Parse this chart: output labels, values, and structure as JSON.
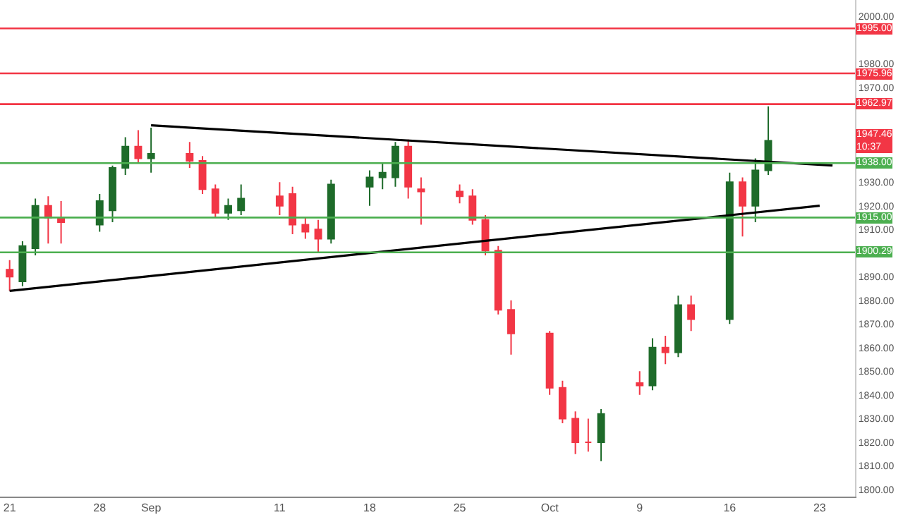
{
  "chart_data": {
    "type": "candlestick",
    "x": [
      "--08-21",
      "--08-22",
      "--08-23",
      "--08-24",
      "--08-25",
      "--08-28",
      "--08-29",
      "--08-30",
      "--08-31",
      "--09-01",
      "--09-04",
      "--09-05",
      "--09-06",
      "--09-07",
      "--09-08",
      "--09-11",
      "--09-12",
      "--09-13",
      "--09-14",
      "--09-15",
      "--09-18",
      "--09-19",
      "--09-20",
      "--09-21",
      "--09-22",
      "--09-25",
      "--09-26",
      "--09-27",
      "--09-28",
      "--09-29",
      "--10-02",
      "--10-03",
      "--10-04",
      "--10-05",
      "--10-06",
      "--10-09",
      "--10-10",
      "--10-11",
      "--10-12",
      "--10-13",
      "--10-16",
      "--10-17",
      "--10-18",
      "--10-19"
    ],
    "ohlc": [
      [
        1893,
        1897,
        1884,
        1890
      ],
      [
        1888,
        1905,
        1886,
        1903
      ],
      [
        1902,
        1923,
        1899,
        1920
      ],
      [
        1920,
        1924,
        1904,
        1915
      ],
      [
        1915,
        1922,
        1904,
        1913
      ],
      [
        1912,
        1925,
        1909,
        1922
      ],
      [
        1918,
        1937,
        1913,
        1936
      ],
      [
        1936,
        1949,
        1933,
        1945
      ],
      [
        1945,
        1952,
        1938,
        1940
      ],
      [
        1940,
        1953,
        1934,
        1942
      ],
      [
        1942,
        1947,
        1936,
        1939
      ],
      [
        1939,
        1941,
        1925,
        1927
      ],
      [
        1927,
        1929,
        1915,
        1917
      ],
      [
        1917,
        1923,
        1914,
        1920
      ],
      [
        1918,
        1929,
        1916,
        1923
      ],
      [
        1924,
        1930,
        1916,
        1920
      ],
      [
        1925,
        1928,
        1908,
        1912
      ],
      [
        1912,
        1915,
        1906,
        1909
      ],
      [
        1910,
        1914,
        1900,
        1906
      ],
      [
        1906,
        1931,
        1904,
        1929
      ],
      [
        1928,
        1935,
        1920,
        1932
      ],
      [
        1932,
        1938,
        1927,
        1934
      ],
      [
        1932,
        1947,
        1928,
        1945
      ],
      [
        1945,
        1948,
        1923,
        1928
      ],
      [
        1927,
        1932,
        1912,
        1926
      ],
      [
        1926,
        1929,
        1921,
        1924
      ],
      [
        1924,
        1927,
        1912,
        1914
      ],
      [
        1914,
        1916,
        1899,
        1901
      ],
      [
        1901,
        1903,
        1874,
        1876
      ],
      [
        1876,
        1880,
        1857,
        1866
      ],
      [
        1866,
        1867,
        1840,
        1843
      ],
      [
        1843,
        1846,
        1828,
        1830
      ],
      [
        1830,
        1833,
        1815,
        1820
      ],
      [
        1820,
        1830,
        1816,
        1820
      ],
      [
        1820,
        1834,
        1812,
        1832
      ],
      [
        1845,
        1850,
        1840,
        1844
      ],
      [
        1844,
        1864,
        1842,
        1860
      ],
      [
        1860,
        1865,
        1853,
        1858
      ],
      [
        1858,
        1882,
        1856,
        1878
      ],
      [
        1878,
        1882,
        1867,
        1872
      ],
      [
        1872,
        1934,
        1870,
        1930
      ],
      [
        1930,
        1932,
        1907,
        1920
      ],
      [
        1920,
        1940,
        1913,
        1935
      ],
      [
        1935,
        1962,
        1933,
        1947.46
      ]
    ],
    "colors": [
      "#f23645",
      "#1e6b2a",
      "#1e6b2a",
      "#f23645",
      "#f23645",
      "#1e6b2a",
      "#1e6b2a",
      "#1e6b2a",
      "#f23645",
      "#1e6b2a",
      "#f23645",
      "#f23645",
      "#f23645",
      "#1e6b2a",
      "#1e6b2a",
      "#f23645",
      "#f23645",
      "#f23645",
      "#f23645",
      "#1e6b2a",
      "#1e6b2a",
      "#1e6b2a",
      "#1e6b2a",
      "#f23645",
      "#f23645",
      "#f23645",
      "#f23645",
      "#f23645",
      "#f23645",
      "#f23645",
      "#f23645",
      "#f23645",
      "#f23645",
      "#f23645",
      "#1e6b2a",
      "#f23645",
      "#1e6b2a",
      "#f23645",
      "#1e6b2a",
      "#f23645",
      "#1e6b2a",
      "#f23645",
      "#1e6b2a",
      "#1e6b2a"
    ],
    "series": [
      {
        "type": "line",
        "x": [
          "--09-01",
          "--10-24"
        ],
        "values": [
          1954,
          1937
        ],
        "color": "#000000"
      },
      {
        "type": "line",
        "x": [
          "--08-21",
          "--10-23"
        ],
        "values": [
          1884,
          1920
        ],
        "color": "#000000"
      }
    ],
    "ref_lines": [
      {
        "axis": "y",
        "value": 1995.0,
        "label": "1995.00",
        "color": "#f23645"
      },
      {
        "axis": "y",
        "value": 1975.96,
        "label": "1975.96",
        "color": "#f23645"
      },
      {
        "axis": "y",
        "value": 1962.97,
        "label": "1962.97",
        "color": "#f23645"
      },
      {
        "axis": "y",
        "value": 1938.0,
        "label": "1938.00",
        "color": "#4caf50"
      },
      {
        "axis": "y",
        "value": 1915.0,
        "label": "1915.00",
        "color": "#4caf50"
      },
      {
        "axis": "y",
        "value": 1900.29,
        "label": "1900.29",
        "color": "#4caf50"
      }
    ],
    "annotations": [
      "1947.46\n10:37"
    ],
    "xlim": [
      "--08-20T06:00",
      "--10-25T18:00"
    ],
    "ylim": [
      1797,
      2007
    ],
    "xticks": [
      {
        "value": "--08-21",
        "label": "21"
      },
      {
        "value": "--08-28",
        "label": "28"
      },
      {
        "value": "--09-01",
        "label": "Sep"
      },
      {
        "value": "--09-11",
        "label": "11"
      },
      {
        "value": "--09-18",
        "label": "18"
      },
      {
        "value": "--09-25",
        "label": "25"
      },
      {
        "value": "--10-02",
        "label": "Oct"
      },
      {
        "value": "--10-09",
        "label": "9"
      },
      {
        "value": "--10-16",
        "label": "16"
      },
      {
        "value": "--10-23",
        "label": "23"
      }
    ],
    "yticks": [
      {
        "value": 1800,
        "label": "1800.00"
      },
      {
        "value": 1810,
        "label": "1810.00"
      },
      {
        "value": 1820,
        "label": "1820.00"
      },
      {
        "value": 1830,
        "label": "1830.00"
      },
      {
        "value": 1840,
        "label": "1840.00"
      },
      {
        "value": 1850,
        "label": "1850.00"
      },
      {
        "value": 1860,
        "label": "1860.00"
      },
      {
        "value": 1870,
        "label": "1870.00"
      },
      {
        "value": 1880,
        "label": "1880.00"
      },
      {
        "value": 1890,
        "label": "1890.00"
      },
      {
        "value": 1910,
        "label": "1910.00"
      },
      {
        "value": 1920,
        "label": "1920.00"
      },
      {
        "value": 1930,
        "label": "1930.00"
      },
      {
        "value": 1970,
        "label": "1970.00"
      },
      {
        "value": 1980,
        "label": "1980.00"
      },
      {
        "value": 2000,
        "label": "2000.00"
      }
    ]
  }
}
